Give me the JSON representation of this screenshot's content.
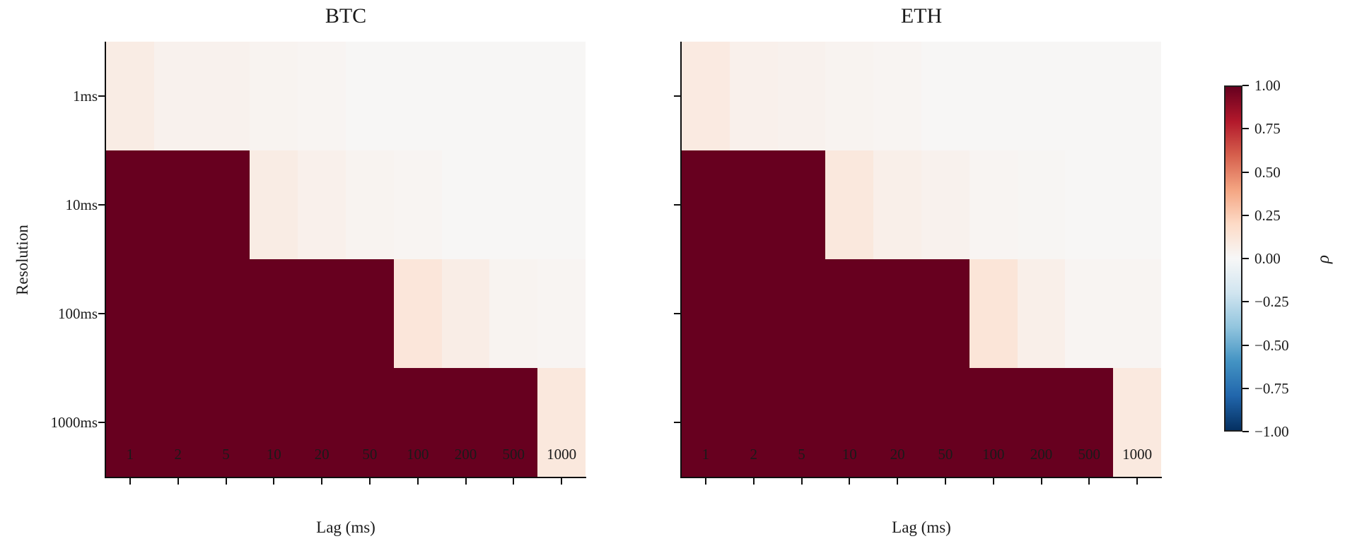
{
  "chart_data": {
    "type": "heatmap",
    "colormap": "RdBu_r",
    "grid": false,
    "background": "#ffffff",
    "x_categories": [
      "1",
      "2",
      "5",
      "10",
      "20",
      "50",
      "100",
      "200",
      "500",
      "1000"
    ],
    "y_categories": [
      "1ms",
      "10ms",
      "100ms",
      "1000ms"
    ],
    "panels": [
      {
        "title": "BTC",
        "xlabel": "Lag (ms)",
        "ylabel": "Resolution",
        "x_ticklabels": [
          "1",
          "2",
          "5",
          "10",
          "20",
          "50",
          "100",
          "200",
          "500",
          "1000"
        ],
        "y_ticklabels": [
          "1ms",
          "10ms",
          "100ms",
          "1000ms"
        ],
        "values": [
          [
            0.08,
            0.04,
            0.04,
            0.03,
            0.02,
            0.01,
            0.01,
            0.01,
            0.01,
            0.01
          ],
          [
            1.0,
            1.0,
            1.0,
            0.08,
            0.05,
            0.03,
            0.02,
            0.01,
            0.01,
            0.01
          ],
          [
            1.0,
            1.0,
            1.0,
            1.0,
            1.0,
            1.0,
            0.12,
            0.07,
            0.03,
            0.02
          ],
          [
            1.0,
            1.0,
            1.0,
            1.0,
            1.0,
            1.0,
            1.0,
            1.0,
            1.0,
            0.11
          ]
        ]
      },
      {
        "title": "ETH",
        "xlabel": "Lag (ms)",
        "ylabel": "",
        "x_ticklabels": [
          "1",
          "2",
          "5",
          "10",
          "20",
          "50",
          "100",
          "200",
          "500",
          "1000"
        ],
        "y_ticklabels": [],
        "values": [
          [
            0.09,
            0.05,
            0.04,
            0.03,
            0.02,
            0.01,
            0.01,
            0.01,
            0.01,
            0.01
          ],
          [
            1.0,
            1.0,
            1.0,
            0.11,
            0.06,
            0.04,
            0.02,
            0.015,
            0.01,
            0.01
          ],
          [
            1.0,
            1.0,
            1.0,
            1.0,
            1.0,
            1.0,
            0.13,
            0.06,
            0.02,
            0.02
          ],
          [
            1.0,
            1.0,
            1.0,
            1.0,
            1.0,
            1.0,
            1.0,
            1.0,
            1.0,
            0.1
          ]
        ]
      }
    ],
    "colorbar": {
      "label": "ρ",
      "vmin": -1,
      "vmax": 1,
      "tick_labels": [
        "1.00",
        "0.75",
        "0.50",
        "0.25",
        "0.00",
        "−0.25",
        "−0.50",
        "−0.75",
        "−1.00"
      ],
      "colormap_stops": [
        "#053061",
        "#2166ac",
        "#4393c3",
        "#92c5de",
        "#d1e5f0",
        "#f7f7f7",
        "#fddbc7",
        "#f4a582",
        "#d6604d",
        "#b2182b",
        "#67001f"
      ]
    }
  }
}
